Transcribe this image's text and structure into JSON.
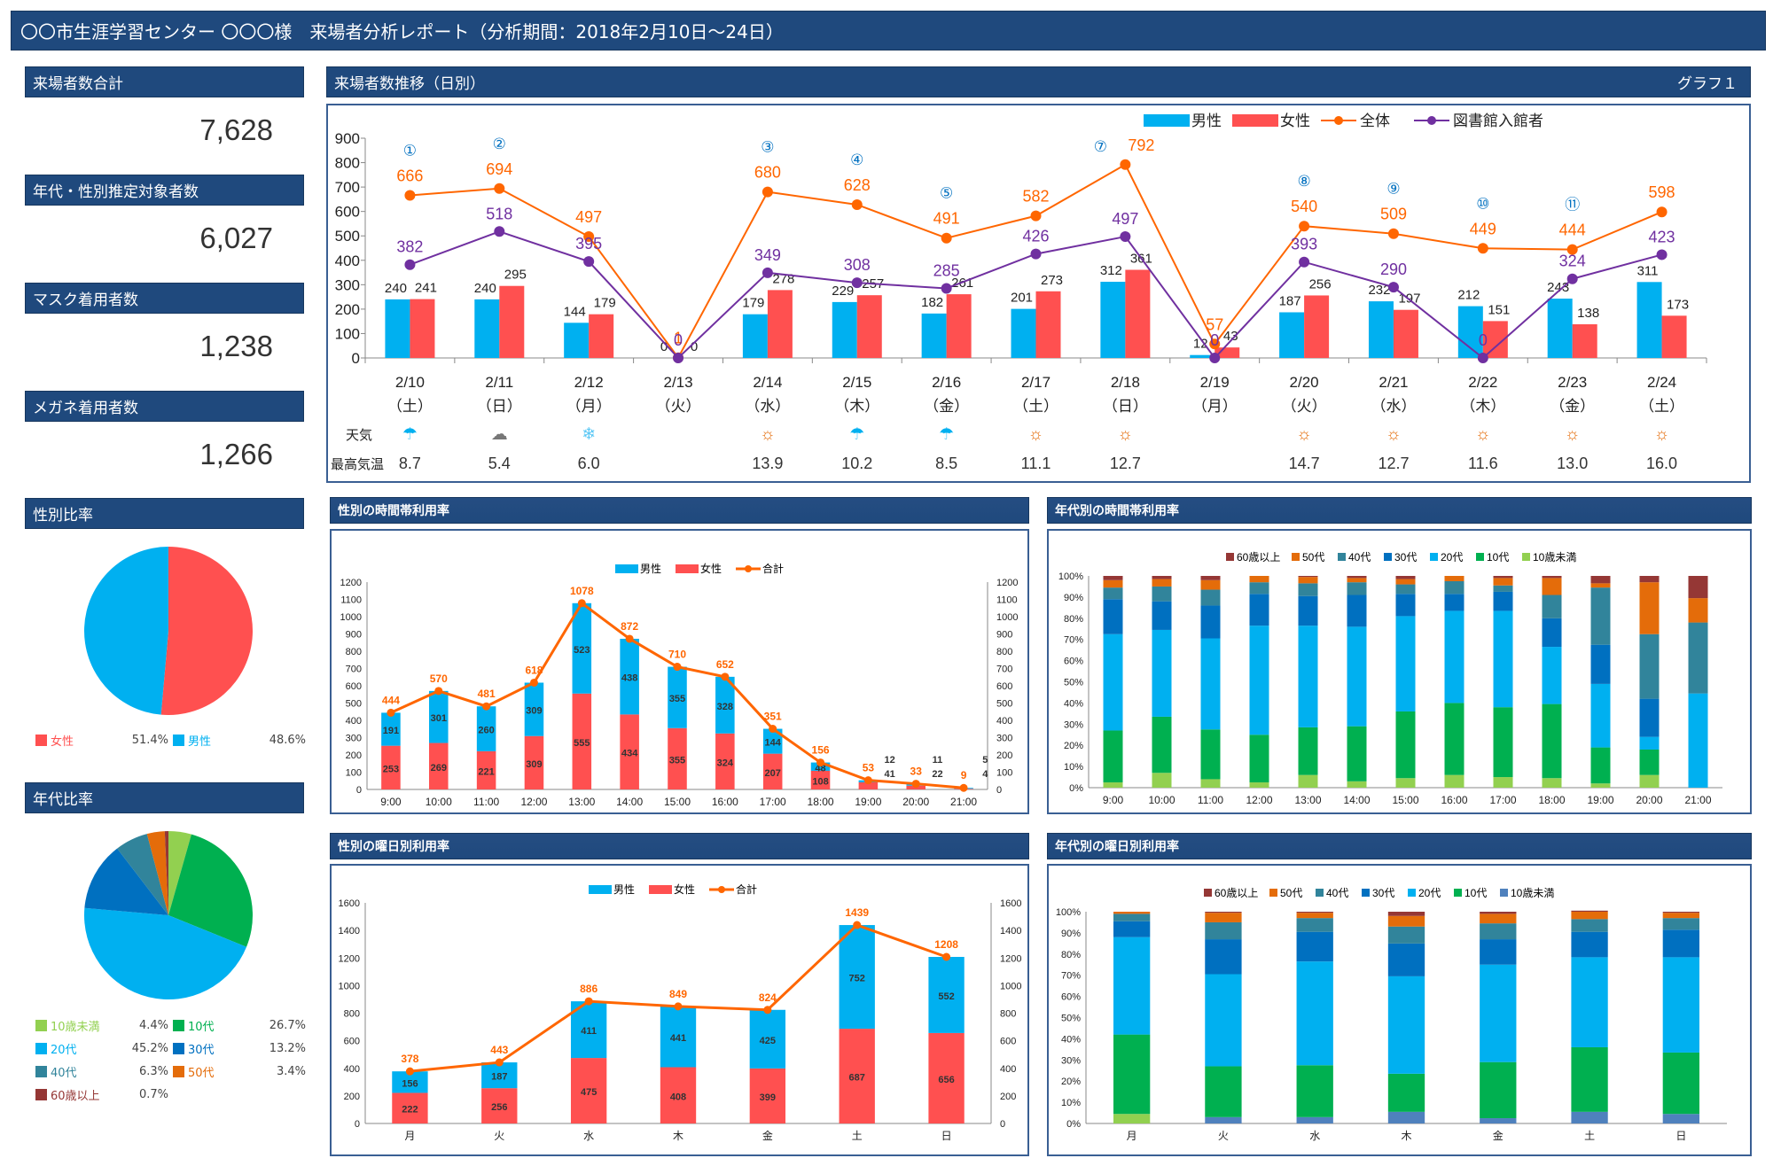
{
  "title": "〇〇市生涯学習センター 〇〇〇様　来場者分析レポート（分析期間：2018年2月10日～24日）",
  "stats": [
    {
      "label": "来場者数合計",
      "value": "7,628"
    },
    {
      "label": "年代・性別推定対象者数",
      "value": "6,027"
    },
    {
      "label": "マスク着用者数",
      "value": "1,238"
    },
    {
      "label": "メガネ着用者数",
      "value": "1,266"
    }
  ],
  "colors": {
    "male": "#00b0f0",
    "female": "#ff5050",
    "total": "#ff6600",
    "library": "#7030a0",
    "header": "#1f497d",
    "age": {
      "u10": "#92d050",
      "10s": "#00b050",
      "20s": "#00b0f0",
      "30s": "#0070c0",
      "40s": "#31849b",
      "50s": "#e46c0a",
      "60p": "#953735",
      "u10_alt": "#4f81bd"
    }
  },
  "gender_ratio": {
    "title": "性別比率",
    "items": [
      {
        "label": "女性",
        "value": 51.4,
        "text": "51.4%",
        "color": "#ff5050"
      },
      {
        "label": "男性",
        "value": 48.6,
        "text": "48.6%",
        "color": "#00b0f0"
      }
    ]
  },
  "age_ratio": {
    "title": "年代比率",
    "items": [
      {
        "label": "10歳未満",
        "value": 4.4,
        "text": "4.4%",
        "color": "#92d050"
      },
      {
        "label": "10代",
        "value": 26.7,
        "text": "26.7%",
        "color": "#00b050"
      },
      {
        "label": "20代",
        "value": 45.2,
        "text": "45.2%",
        "color": "#00b0f0"
      },
      {
        "label": "30代",
        "value": 13.2,
        "text": "13.2%",
        "color": "#0070c0"
      },
      {
        "label": "40代",
        "value": 6.3,
        "text": "6.3%",
        "color": "#31849b"
      },
      {
        "label": "50代",
        "value": 3.4,
        "text": "3.4%",
        "color": "#e46c0a"
      },
      {
        "label": "60歳以上",
        "value": 0.7,
        "text": "0.7%",
        "color": "#953735"
      }
    ]
  },
  "chart_data": [
    {
      "id": "daily",
      "type": "bar",
      "title": "来場者数推移（日別）",
      "badge": "グラフ１",
      "legend": [
        "男性",
        "女性",
        "全体",
        "図書館入館者"
      ],
      "categories": [
        "2/10",
        "2/11",
        "2/12",
        "2/13",
        "2/14",
        "2/15",
        "2/16",
        "2/17",
        "2/18",
        "2/19",
        "2/20",
        "2/21",
        "2/22",
        "2/23",
        "2/24"
      ],
      "weekdays": [
        "（土）",
        "（日）",
        "（月）",
        "（火）",
        "（水）",
        "（木）",
        "（金）",
        "（土）",
        "（日）",
        "（月）",
        "（火）",
        "（水）",
        "（木）",
        "（金）",
        "（土）"
      ],
      "series": [
        {
          "name": "男性",
          "type": "bar",
          "values": [
            240,
            240,
            144,
            0,
            179,
            229,
            182,
            201,
            312,
            12,
            187,
            232,
            212,
            243,
            311
          ]
        },
        {
          "name": "女性",
          "type": "bar",
          "values": [
            241,
            295,
            179,
            0,
            278,
            257,
            261,
            273,
            361,
            43,
            256,
            197,
            151,
            138,
            173
          ]
        },
        {
          "name": "全体",
          "type": "line",
          "values": [
            666,
            694,
            497,
            1,
            680,
            628,
            491,
            582,
            792,
            57,
            540,
            509,
            449,
            444,
            598
          ]
        },
        {
          "name": "図書館入館者",
          "type": "line",
          "values": [
            382,
            518,
            395,
            0,
            349,
            308,
            285,
            426,
            497,
            0,
            393,
            290,
            0,
            324,
            423
          ]
        }
      ],
      "markers": [
        "①",
        "②",
        "",
        "",
        "③",
        "④",
        "⑤",
        "",
        "⑦",
        "",
        "⑧",
        "⑨",
        "⑩",
        "⑪",
        ""
      ],
      "weather_label": "天気",
      "weather": [
        "rain",
        "cloud",
        "snow",
        "",
        "sun",
        "rain",
        "rain",
        "sun",
        "sun",
        "",
        "sun",
        "sun",
        "sun",
        "sun",
        "sun"
      ],
      "temp_label": "最高気温",
      "temps": [
        "8.7",
        "5.4",
        "6.0",
        "",
        "13.9",
        "10.2",
        "8.5",
        "11.1",
        "12.7",
        "",
        "14.7",
        "12.7",
        "11.6",
        "13.0",
        "16.0"
      ],
      "ylim": [
        0,
        900
      ],
      "yticks": [
        0,
        100,
        200,
        300,
        400,
        500,
        600,
        700,
        800,
        900
      ]
    },
    {
      "id": "gender_hour",
      "type": "bar",
      "title": "性別の時間帯利用率",
      "legend": [
        "男性",
        "女性",
        "合計"
      ],
      "categories": [
        "9:00",
        "10:00",
        "11:00",
        "12:00",
        "13:00",
        "14:00",
        "15:00",
        "16:00",
        "17:00",
        "18:00",
        "19:00",
        "20:00",
        "21:00"
      ],
      "series": [
        {
          "name": "女性",
          "values": [
            253,
            269,
            221,
            309,
            555,
            434,
            355,
            324,
            207,
            108,
            41,
            22,
            4
          ]
        },
        {
          "name": "男性",
          "values": [
            191,
            301,
            260,
            309,
            523,
            438,
            355,
            328,
            144,
            48,
            12,
            11,
            5
          ]
        },
        {
          "name": "合計",
          "values": [
            444,
            570,
            481,
            618,
            1078,
            872,
            710,
            652,
            351,
            156,
            53,
            33,
            9
          ]
        }
      ],
      "ylim": [
        0,
        1200
      ],
      "yticks": [
        0,
        100,
        200,
        300,
        400,
        500,
        600,
        700,
        800,
        900,
        1000,
        1100,
        1200
      ]
    },
    {
      "id": "age_hour",
      "type": "bar",
      "title": "年代別の時間帯利用率",
      "legend": [
        "60歳以上",
        "50代",
        "40代",
        "30代",
        "20代",
        "10代",
        "10歳未満"
      ],
      "categories": [
        "9:00",
        "10:00",
        "11:00",
        "12:00",
        "13:00",
        "14:00",
        "15:00",
        "16:00",
        "17:00",
        "18:00",
        "19:00",
        "20:00",
        "21:00"
      ],
      "series": [
        {
          "name": "10歳未満",
          "values": [
            2.5,
            7,
            4,
            2.5,
            6,
            3,
            4.5,
            6,
            5,
            4.5,
            2,
            6,
            0
          ]
        },
        {
          "name": "10代",
          "values": [
            24.5,
            26.5,
            23.5,
            22.5,
            22.5,
            26,
            31.5,
            34,
            33,
            35,
            17,
            12,
            0
          ]
        },
        {
          "name": "20代",
          "values": [
            45.5,
            41,
            43,
            51.5,
            48,
            47,
            45,
            43.5,
            45.5,
            27,
            30,
            6,
            44.5
          ]
        },
        {
          "name": "30代",
          "values": [
            16.5,
            13.5,
            15.5,
            15,
            14,
            15,
            10.5,
            8,
            9,
            13.5,
            18.5,
            18,
            0
          ]
        },
        {
          "name": "40代",
          "values": [
            5.5,
            7,
            7.5,
            5.5,
            6,
            6,
            4.5,
            6,
            3,
            11,
            27,
            30.5,
            33.5
          ]
        },
        {
          "name": "50代",
          "values": [
            3.5,
            3.5,
            4.5,
            3,
            3,
            2,
            2.5,
            2.5,
            3.5,
            8,
            2,
            24.5,
            11.5
          ]
        },
        {
          "name": "60歳以上",
          "values": [
            2,
            1.5,
            2,
            0,
            0.5,
            1,
            1.5,
            0,
            1,
            1,
            3.5,
            3,
            10.5
          ]
        }
      ],
      "ylim": [
        0,
        100
      ],
      "yticks": [
        "0%",
        "10%",
        "20%",
        "30%",
        "40%",
        "50%",
        "60%",
        "70%",
        "80%",
        "90%",
        "100%"
      ]
    },
    {
      "id": "gender_weekday",
      "type": "bar",
      "title": "性別の曜日別利用率",
      "legend": [
        "男性",
        "女性",
        "合計"
      ],
      "categories": [
        "月",
        "火",
        "水",
        "木",
        "金",
        "土",
        "日"
      ],
      "series": [
        {
          "name": "女性",
          "values": [
            222,
            256,
            475,
            408,
            399,
            687,
            656
          ]
        },
        {
          "name": "男性",
          "values": [
            156,
            187,
            411,
            441,
            425,
            752,
            552
          ]
        },
        {
          "name": "合計",
          "values": [
            378,
            443,
            886,
            849,
            824,
            1439,
            1208
          ]
        }
      ],
      "ylim": [
        0,
        1600
      ],
      "yticks": [
        0,
        200,
        400,
        600,
        800,
        1000,
        1200,
        1400,
        1600
      ]
    },
    {
      "id": "age_weekday",
      "type": "bar",
      "title": "年代別の曜日別利用率",
      "legend": [
        "60歳以上",
        "50代",
        "40代",
        "30代",
        "20代",
        "10代",
        "10歳未満"
      ],
      "categories": [
        "月",
        "火",
        "水",
        "木",
        "金",
        "土",
        "日"
      ],
      "series": [
        {
          "name": "10歳未満",
          "values": [
            4.5,
            3,
            3,
            5.5,
            2.5,
            5.5,
            4.5
          ]
        },
        {
          "name": "10代",
          "values": [
            37.5,
            24,
            24.5,
            18,
            26.5,
            30.5,
            29
          ]
        },
        {
          "name": "20代",
          "values": [
            46,
            43.5,
            49,
            46,
            46,
            42.5,
            45
          ]
        },
        {
          "name": "30代",
          "values": [
            7.5,
            16.5,
            14,
            15.5,
            12,
            12,
            13
          ]
        },
        {
          "name": "40代",
          "values": [
            3.5,
            8,
            6.5,
            8,
            7.5,
            6,
            5.5
          ]
        },
        {
          "name": "50代",
          "values": [
            1,
            4.5,
            2.5,
            5,
            4.5,
            3.5,
            2.5
          ]
        },
        {
          "name": "60歳以上",
          "values": [
            0,
            0.5,
            0.5,
            2,
            1,
            0.5,
            0.5
          ]
        }
      ],
      "ylim": [
        0,
        100
      ],
      "yticks": [
        "0%",
        "10%",
        "20%",
        "30%",
        "40%",
        "50%",
        "60%",
        "70%",
        "80%",
        "90%",
        "100%"
      ]
    }
  ]
}
